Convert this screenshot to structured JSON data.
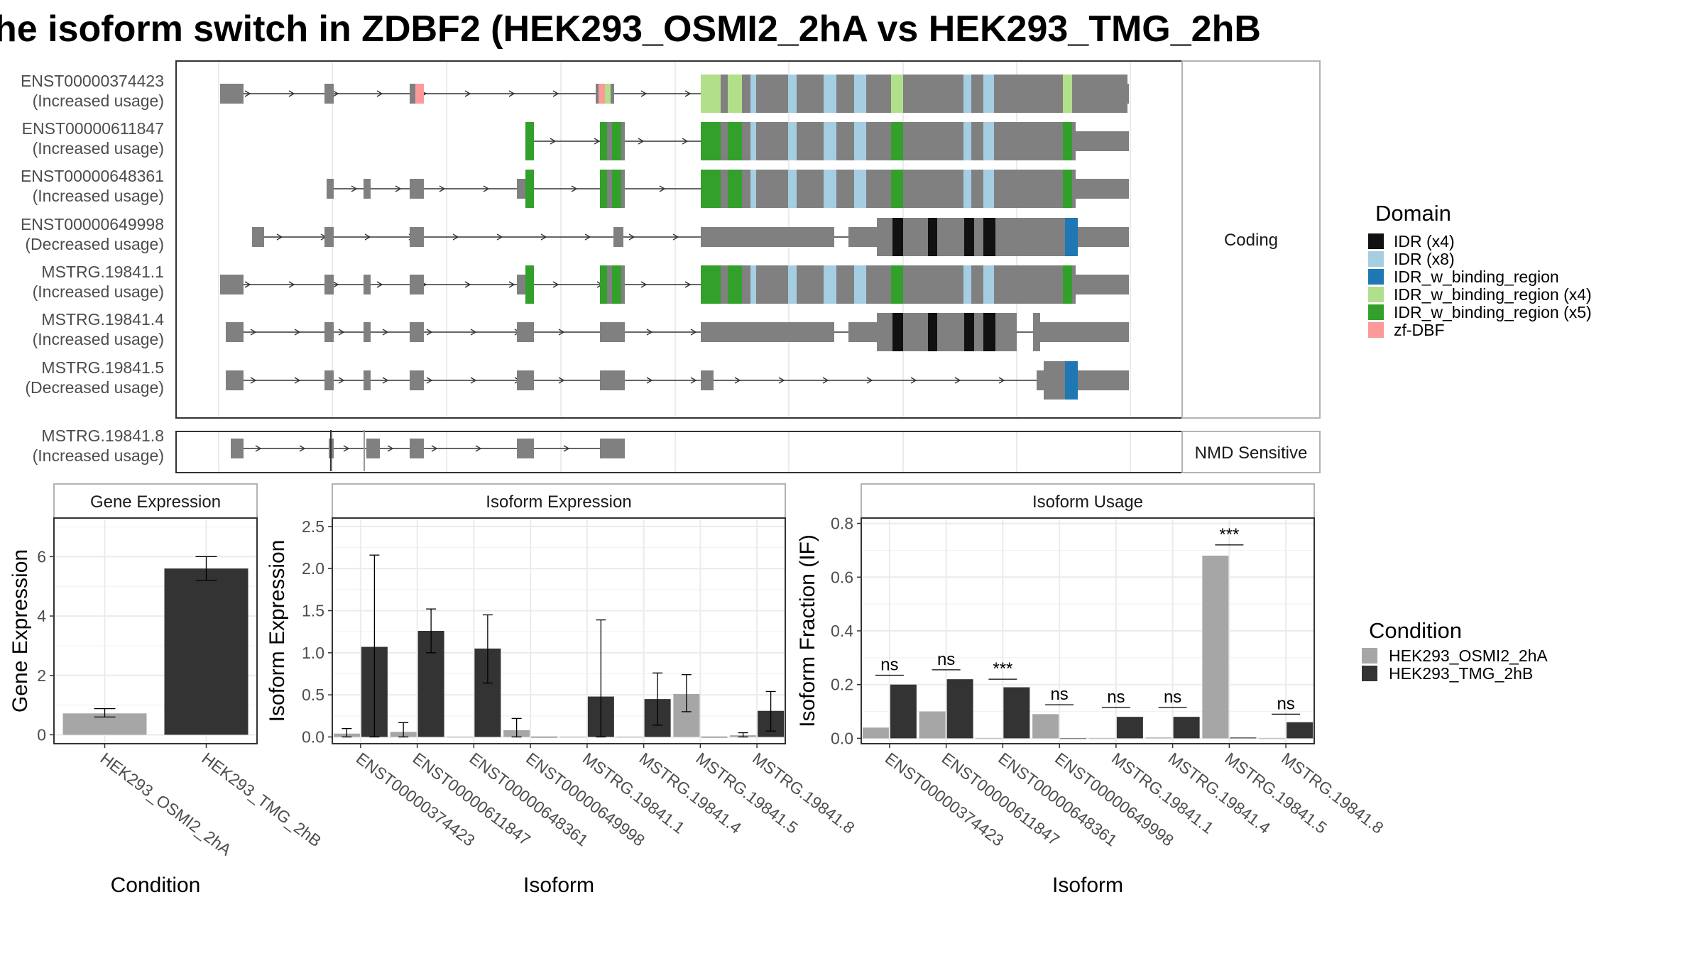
{
  "title": "he isoform switch in ZDBF2 (HEK293_OSMI2_2hA vs HEK293_TMG_2hB",
  "colors": {
    "intron": "#333333",
    "exon": "#808080",
    "osmi": "#a6a6a6",
    "tmg": "#333333",
    "grid": "#ebebeb",
    "panel_border": "#333333",
    "strip_border": "#b3b3b3"
  },
  "structure": {
    "strip_coding": "Coding",
    "strip_nmd": "NMD Sensitive",
    "transcripts": [
      {
        "id": "ENST00000374423",
        "usage": "(Increased usage)"
      },
      {
        "id": "ENST00000611847",
        "usage": "(Increased usage)"
      },
      {
        "id": "ENST00000648361",
        "usage": "(Increased usage)"
      },
      {
        "id": "ENST00000649998",
        "usage": "(Decreased usage)"
      },
      {
        "id": "MSTRG.19841.1",
        "usage": "(Increased usage)"
      },
      {
        "id": "MSTRG.19841.4",
        "usage": "(Increased usage)"
      },
      {
        "id": "MSTRG.19841.5",
        "usage": "(Decreased usage)"
      }
    ],
    "nmd_transcripts": [
      {
        "id": "MSTRG.19841.8",
        "usage": "(Increased usage)"
      }
    ]
  },
  "domain_legend": {
    "title": "Domain",
    "items": [
      {
        "label": "IDR (x4)",
        "color": "#111111"
      },
      {
        "label": "IDR (x8)",
        "color": "#a6cee3"
      },
      {
        "label": "IDR_w_binding_region",
        "color": "#1f78b4"
      },
      {
        "label": "IDR_w_binding_region (x4)",
        "color": "#b2df8a"
      },
      {
        "label": "IDR_w_binding_region (x5)",
        "color": "#33a02c"
      },
      {
        "label": "zf-DBF",
        "color": "#fb9a99"
      }
    ]
  },
  "condition_legend": {
    "title": "Condition",
    "items": [
      {
        "label": "HEK293_OSMI2_2hA",
        "color": "#a6a6a6"
      },
      {
        "label": "HEK293_TMG_2hB",
        "color": "#333333"
      }
    ]
  },
  "chart_data": [
    {
      "type": "bar",
      "title": "Gene Expression",
      "xlabel": "Condition",
      "ylabel": "Gene Expression",
      "ylim": [
        -0.3,
        7.3
      ],
      "yticks": [
        0,
        2,
        4,
        6
      ],
      "categories": [
        "HEK293_OSMI2_2hA",
        "HEK293_TMG_2hB"
      ],
      "values": [
        0.72,
        5.6
      ],
      "errors": [
        [
          0.6,
          0.88
        ],
        [
          5.2,
          6.0
        ]
      ],
      "colors": [
        "#a6a6a6",
        "#333333"
      ]
    },
    {
      "type": "bar",
      "title": "Isoform Expression",
      "xlabel": "Isoform",
      "ylabel": "Isoform Expression",
      "ylim": [
        -0.08,
        2.6
      ],
      "yticks": [
        0.0,
        0.5,
        1.0,
        1.5,
        2.0,
        2.5
      ],
      "ytick_labels": [
        "0.0",
        "0.5",
        "1.0",
        "1.5",
        "2.0",
        "2.5"
      ],
      "categories": [
        "ENST00000374423",
        "ENST00000611847",
        "ENST00000648361",
        "ENST00000649998",
        "MSTRG.19841.1",
        "MSTRG.19841.4",
        "MSTRG.19841.5",
        "MSTRG.19841.8"
      ],
      "series": [
        {
          "name": "HEK293_OSMI2_2hA",
          "values": [
            0.04,
            0.06,
            0.0,
            0.08,
            0.0,
            0.0,
            0.51,
            0.02
          ],
          "errors": [
            [
              0.0,
              0.1
            ],
            [
              0.0,
              0.17
            ],
            null,
            [
              0.0,
              0.22
            ],
            null,
            null,
            [
              0.3,
              0.74
            ],
            [
              0.0,
              0.05
            ]
          ]
        },
        {
          "name": "HEK293_TMG_2hB",
          "values": [
            1.07,
            1.26,
            1.05,
            0.0,
            0.48,
            0.45,
            0.0,
            0.31
          ],
          "errors": [
            [
              0.0,
              2.16
            ],
            [
              1.0,
              1.52
            ],
            [
              0.64,
              1.45
            ],
            null,
            [
              0.0,
              1.39
            ],
            [
              0.14,
              0.76
            ],
            null,
            [
              0.07,
              0.54
            ]
          ]
        }
      ]
    },
    {
      "type": "bar",
      "title": "Isoform Usage",
      "xlabel": "Isoform",
      "ylabel": "Isoform Fraction (IF)",
      "ylim": [
        -0.02,
        0.82
      ],
      "yticks": [
        0.0,
        0.2,
        0.4,
        0.6,
        0.8
      ],
      "ytick_labels": [
        "0.0",
        "0.2",
        "0.4",
        "0.6",
        "0.8"
      ],
      "categories": [
        "ENST00000374423",
        "ENST00000611847",
        "ENST00000648361",
        "ENST00000649998",
        "MSTRG.19841.1",
        "MSTRG.19841.4",
        "MSTRG.19841.5",
        "MSTRG.19841.8"
      ],
      "series": [
        {
          "name": "HEK293_OSMI2_2hA",
          "values": [
            0.04,
            0.1,
            0.0,
            0.09,
            0.0,
            0.003,
            0.68,
            0.0
          ]
        },
        {
          "name": "HEK293_TMG_2hB",
          "values": [
            0.2,
            0.22,
            0.19,
            0.0,
            0.08,
            0.08,
            0.003,
            0.06
          ]
        }
      ],
      "significance": [
        "ns",
        "ns",
        "***",
        "ns",
        "ns",
        "ns",
        "***",
        "ns"
      ],
      "significance_height": [
        0.235,
        0.255,
        0.22,
        0.125,
        0.115,
        0.115,
        0.72,
        0.09
      ]
    }
  ]
}
